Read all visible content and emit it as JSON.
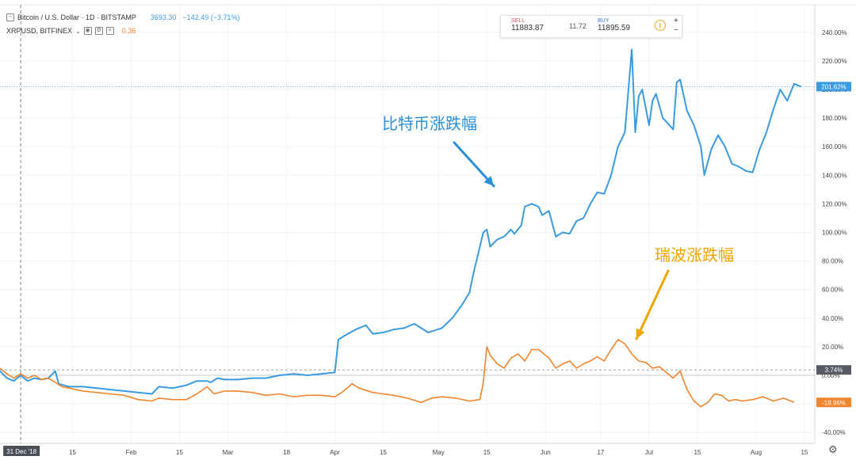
{
  "legend": {
    "main_symbol": "Bitcoin / U.S. Dollar · 1D · BITSTAMP",
    "main_price": "3693.30",
    "main_change": "−142.49 (−3.71%)",
    "compare_symbol": "XRPUSD, BITFINEX",
    "compare_value": "0.36"
  },
  "trade": {
    "sell_label": "SELL",
    "sell_price": "11883.87",
    "spread": "11.72",
    "buy_label": "BUY",
    "buy_price": "11895.59",
    "plus": "+",
    "minus": "−",
    "info": "i"
  },
  "annotations": {
    "btc": "比特币涨跌幅",
    "xrp": "瑞波涨跌幅"
  },
  "colors": {
    "btc": "#3a9be0",
    "xrp": "#f0852d",
    "btc_annot": "#2a8fd8",
    "xrp_annot": "#f2a400"
  },
  "icons": {
    "settings": "gear-icon",
    "collapse": "minus-square-icon"
  },
  "chart_data": {
    "type": "line",
    "x_range": [
      "2018-12-25",
      "2019-08-18"
    ],
    "y_unit": "%",
    "ylim": [
      -48,
      252
    ],
    "y_ticks": [
      -40,
      -20,
      0,
      20,
      40,
      60,
      80,
      100,
      120,
      140,
      160,
      180,
      200,
      220,
      240
    ],
    "y_tick_labels": [
      "-40.00%",
      "-20.00%",
      "0.00%",
      "20.00%",
      "40.00%",
      "60.00%",
      "80.00%",
      "100.00%",
      "120.00%",
      "140.00%",
      "160.00%",
      "180.00%",
      "200.00%",
      "220.00%",
      "240.00%"
    ],
    "x_ticks": [
      {
        "date": "2019-01-15",
        "label": "15"
      },
      {
        "date": "2019-02-01",
        "label": "Feb"
      },
      {
        "date": "2019-02-15",
        "label": "15"
      },
      {
        "date": "2019-03-01",
        "label": "Mar"
      },
      {
        "date": "2019-03-18",
        "label": "18"
      },
      {
        "date": "2019-04-01",
        "label": "Apr"
      },
      {
        "date": "2019-04-15",
        "label": "15"
      },
      {
        "date": "2019-05-01",
        "label": "May"
      },
      {
        "date": "2019-05-15",
        "label": "15"
      },
      {
        "date": "2019-06-01",
        "label": "Jun"
      },
      {
        "date": "2019-06-17",
        "label": "17"
      },
      {
        "date": "2019-07-01",
        "label": "Jul"
      },
      {
        "date": "2019-07-15",
        "label": "15"
      },
      {
        "date": "2019-08-01",
        "label": "Aug"
      },
      {
        "date": "2019-08-15",
        "label": "15"
      }
    ],
    "crosshair": {
      "date": "2018-12-31",
      "label": "31 Dec '18"
    },
    "grid": true,
    "series": [
      {
        "color": "#3a9be0",
        "last_label": "201.62%",
        "points": [
          [
            "2018-12-25",
            3
          ],
          [
            "2018-12-27",
            -2
          ],
          [
            "2018-12-29",
            -4
          ],
          [
            "2018-12-31",
            0
          ],
          [
            "2019-01-02",
            -4
          ],
          [
            "2019-01-04",
            -2
          ],
          [
            "2019-01-06",
            -3
          ],
          [
            "2019-01-08",
            -2
          ],
          [
            "2019-01-10",
            3
          ],
          [
            "2019-01-11",
            -6
          ],
          [
            "2019-01-14",
            -8
          ],
          [
            "2019-01-18",
            -8
          ],
          [
            "2019-01-22",
            -9
          ],
          [
            "2019-01-26",
            -10
          ],
          [
            "2019-01-30",
            -11
          ],
          [
            "2019-02-03",
            -12
          ],
          [
            "2019-02-07",
            -13
          ],
          [
            "2019-02-09",
            -8
          ],
          [
            "2019-02-13",
            -9
          ],
          [
            "2019-02-17",
            -7
          ],
          [
            "2019-02-20",
            -4
          ],
          [
            "2019-02-23",
            -4
          ],
          [
            "2019-02-24",
            -5
          ],
          [
            "2019-02-26",
            -2
          ],
          [
            "2019-02-28",
            -3
          ],
          [
            "2019-03-04",
            -3
          ],
          [
            "2019-03-08",
            -2
          ],
          [
            "2019-03-12",
            -2
          ],
          [
            "2019-03-16",
            0
          ],
          [
            "2019-03-20",
            1
          ],
          [
            "2019-03-24",
            0
          ],
          [
            "2019-03-28",
            1
          ],
          [
            "2019-04-01",
            2
          ],
          [
            "2019-04-02",
            25
          ],
          [
            "2019-04-04",
            28
          ],
          [
            "2019-04-07",
            32
          ],
          [
            "2019-04-10",
            35
          ],
          [
            "2019-04-12",
            29
          ],
          [
            "2019-04-15",
            30
          ],
          [
            "2019-04-18",
            32
          ],
          [
            "2019-04-21",
            33
          ],
          [
            "2019-04-24",
            36
          ],
          [
            "2019-04-26",
            33
          ],
          [
            "2019-04-28",
            30
          ],
          [
            "2019-05-02",
            33
          ],
          [
            "2019-05-05",
            40
          ],
          [
            "2019-05-08",
            50
          ],
          [
            "2019-05-10",
            58
          ],
          [
            "2019-05-11",
            70
          ],
          [
            "2019-05-12",
            80
          ],
          [
            "2019-05-14",
            100
          ],
          [
            "2019-05-15",
            102
          ],
          [
            "2019-05-16",
            90
          ],
          [
            "2019-05-18",
            95
          ],
          [
            "2019-05-20",
            97
          ],
          [
            "2019-05-22",
            102
          ],
          [
            "2019-05-23",
            99
          ],
          [
            "2019-05-25",
            105
          ],
          [
            "2019-05-26",
            118
          ],
          [
            "2019-05-28",
            120
          ],
          [
            "2019-05-30",
            118
          ],
          [
            "2019-05-31",
            112
          ],
          [
            "2019-06-02",
            115
          ],
          [
            "2019-06-04",
            97
          ],
          [
            "2019-06-06",
            100
          ],
          [
            "2019-06-08",
            99
          ],
          [
            "2019-06-10",
            108
          ],
          [
            "2019-06-12",
            110
          ],
          [
            "2019-06-14",
            120
          ],
          [
            "2019-06-16",
            128
          ],
          [
            "2019-06-18",
            127
          ],
          [
            "2019-06-20",
            140
          ],
          [
            "2019-06-22",
            160
          ],
          [
            "2019-06-24",
            170
          ],
          [
            "2019-06-26",
            228
          ],
          [
            "2019-06-27",
            170
          ],
          [
            "2019-06-28",
            195
          ],
          [
            "2019-06-29",
            200
          ],
          [
            "2019-07-01",
            175
          ],
          [
            "2019-07-02",
            192
          ],
          [
            "2019-07-03",
            197
          ],
          [
            "2019-07-05",
            180
          ],
          [
            "2019-07-08",
            172
          ],
          [
            "2019-07-09",
            205
          ],
          [
            "2019-07-10",
            207
          ],
          [
            "2019-07-12",
            185
          ],
          [
            "2019-07-14",
            175
          ],
          [
            "2019-07-16",
            160
          ],
          [
            "2019-07-17",
            140
          ],
          [
            "2019-07-19",
            158
          ],
          [
            "2019-07-21",
            168
          ],
          [
            "2019-07-23",
            160
          ],
          [
            "2019-07-25",
            148
          ],
          [
            "2019-07-27",
            146
          ],
          [
            "2019-07-29",
            143
          ],
          [
            "2019-07-31",
            142
          ],
          [
            "2019-08-02",
            158
          ],
          [
            "2019-08-04",
            170
          ],
          [
            "2019-08-06",
            186
          ],
          [
            "2019-08-08",
            200
          ],
          [
            "2019-08-10",
            192
          ],
          [
            "2019-08-12",
            204
          ],
          [
            "2019-08-14",
            202
          ]
        ]
      },
      {
        "color": "#f0852d",
        "last_label": "-18.96%",
        "points": [
          [
            "2018-12-25",
            5
          ],
          [
            "2018-12-27",
            1
          ],
          [
            "2018-12-29",
            -2
          ],
          [
            "2018-12-31",
            1
          ],
          [
            "2019-01-02",
            -2
          ],
          [
            "2019-01-04",
            0
          ],
          [
            "2019-01-06",
            -3
          ],
          [
            "2019-01-08",
            -2
          ],
          [
            "2019-01-10",
            -5
          ],
          [
            "2019-01-12",
            -8
          ],
          [
            "2019-01-14",
            -9
          ],
          [
            "2019-01-18",
            -11
          ],
          [
            "2019-01-22",
            -12
          ],
          [
            "2019-01-26",
            -13
          ],
          [
            "2019-01-30",
            -14
          ],
          [
            "2019-02-03",
            -17
          ],
          [
            "2019-02-07",
            -18
          ],
          [
            "2019-02-09",
            -16
          ],
          [
            "2019-02-13",
            -17
          ],
          [
            "2019-02-17",
            -17
          ],
          [
            "2019-02-20",
            -13
          ],
          [
            "2019-02-23",
            -8
          ],
          [
            "2019-02-25",
            -13
          ],
          [
            "2019-02-28",
            -11
          ],
          [
            "2019-03-04",
            -11
          ],
          [
            "2019-03-08",
            -12
          ],
          [
            "2019-03-12",
            -14
          ],
          [
            "2019-03-16",
            -13
          ],
          [
            "2019-03-20",
            -15
          ],
          [
            "2019-03-24",
            -14
          ],
          [
            "2019-03-28",
            -14
          ],
          [
            "2019-04-01",
            -15
          ],
          [
            "2019-04-03",
            -12
          ],
          [
            "2019-04-06",
            -6
          ],
          [
            "2019-04-08",
            -9
          ],
          [
            "2019-04-12",
            -12
          ],
          [
            "2019-04-15",
            -13
          ],
          [
            "2019-04-18",
            -14
          ],
          [
            "2019-04-22",
            -16
          ],
          [
            "2019-04-26",
            -19
          ],
          [
            "2019-04-29",
            -16
          ],
          [
            "2019-05-02",
            -15
          ],
          [
            "2019-05-06",
            -16
          ],
          [
            "2019-05-10",
            -18
          ],
          [
            "2019-05-13",
            -17
          ],
          [
            "2019-05-14",
            -5
          ],
          [
            "2019-05-15",
            20
          ],
          [
            "2019-05-16",
            14
          ],
          [
            "2019-05-18",
            8
          ],
          [
            "2019-05-20",
            5
          ],
          [
            "2019-05-22",
            12
          ],
          [
            "2019-05-24",
            15
          ],
          [
            "2019-05-26",
            10
          ],
          [
            "2019-05-28",
            18
          ],
          [
            "2019-05-30",
            18
          ],
          [
            "2019-06-02",
            12
          ],
          [
            "2019-06-04",
            5
          ],
          [
            "2019-06-06",
            8
          ],
          [
            "2019-06-08",
            10
          ],
          [
            "2019-06-10",
            5
          ],
          [
            "2019-06-12",
            8
          ],
          [
            "2019-06-14",
            10
          ],
          [
            "2019-06-16",
            13
          ],
          [
            "2019-06-18",
            10
          ],
          [
            "2019-06-20",
            18
          ],
          [
            "2019-06-22",
            25
          ],
          [
            "2019-06-24",
            22
          ],
          [
            "2019-06-26",
            15
          ],
          [
            "2019-06-28",
            10
          ],
          [
            "2019-06-30",
            9
          ],
          [
            "2019-07-02",
            5
          ],
          [
            "2019-07-04",
            6
          ],
          [
            "2019-07-06",
            2
          ],
          [
            "2019-07-08",
            -2
          ],
          [
            "2019-07-10",
            3
          ],
          [
            "2019-07-12",
            -10
          ],
          [
            "2019-07-14",
            -18
          ],
          [
            "2019-07-16",
            -22
          ],
          [
            "2019-07-18",
            -19
          ],
          [
            "2019-07-20",
            -13
          ],
          [
            "2019-07-22",
            -14
          ],
          [
            "2019-07-24",
            -18
          ],
          [
            "2019-07-26",
            -17
          ],
          [
            "2019-07-28",
            -18
          ],
          [
            "2019-07-31",
            -17
          ],
          [
            "2019-08-03",
            -15
          ],
          [
            "2019-08-06",
            -18
          ],
          [
            "2019-08-09",
            -16
          ],
          [
            "2019-08-12",
            -19
          ]
        ]
      }
    ],
    "reference_line": {
      "value": 3.74,
      "label": "3.74%"
    }
  }
}
